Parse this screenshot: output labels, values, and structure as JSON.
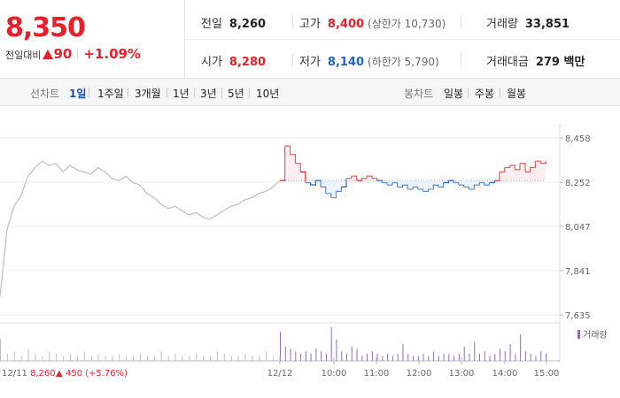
{
  "header": {
    "price": "8,350",
    "change_label": "전일대비",
    "change_amount": "90",
    "change_pct": "+1.09%",
    "fields": {
      "prev_close": {
        "label": "전일",
        "value": "8,260"
      },
      "high": {
        "label": "고가",
        "value": "8,400",
        "sub": "(상한가 10,730)"
      },
      "volume": {
        "label": "거래량",
        "value": "33,851"
      },
      "open": {
        "label": "시가",
        "value": "8,280"
      },
      "low": {
        "label": "저가",
        "value": "8,140",
        "sub": "(하한가 5,790)"
      },
      "turnover": {
        "label": "거래대금",
        "value": "279 백만"
      }
    }
  },
  "tabs": {
    "line_label": "선차트",
    "line_periods": [
      "1일",
      "1주일",
      "3개월",
      "1년",
      "3년",
      "5년",
      "10년"
    ],
    "active_period": "1일",
    "candle_label": "봉차트",
    "candle_periods": [
      "일봉",
      "주봉",
      "월봉"
    ]
  },
  "colors": {
    "up": "#e8202a",
    "down": "#1d63c9",
    "prev_day": "#bdbdbd",
    "volume": "#8c6fb8"
  },
  "chart_data": {
    "type": "line",
    "ylim": [
      7635,
      8458
    ],
    "y_ticks": [
      "8,458",
      "8,252",
      "8,047",
      "7,841",
      "7,635"
    ],
    "y_tick_values": [
      8458,
      8252,
      8047,
      7841,
      7635
    ],
    "baseline": 8260,
    "x_tick_labels": [
      "12/12",
      "10:00",
      "11:00",
      "12:00",
      "13:00",
      "14:00",
      "15:00"
    ],
    "prev_day": {
      "date_label": "12/11",
      "close": "8,260",
      "change": "450",
      "change_pct": "(+5.76%)",
      "values": [
        7720,
        8030,
        8140,
        8190,
        8280,
        8320,
        8350,
        8330,
        8340,
        8300,
        8330,
        8310,
        8300,
        8290,
        8320,
        8300,
        8270,
        8260,
        8280,
        8250,
        8240,
        8200,
        8180,
        8150,
        8130,
        8140,
        8120,
        8100,
        8110,
        8090,
        8080,
        8100,
        8120,
        8140,
        8150,
        8170,
        8180,
        8200,
        8210,
        8230,
        8260
      ]
    },
    "today": {
      "values": [
        8260,
        8420,
        8380,
        8340,
        8300,
        8250,
        8240,
        8260,
        8230,
        8200,
        8180,
        8210,
        8230,
        8270,
        8280,
        8260,
        8270,
        8280,
        8270,
        8260,
        8250,
        8240,
        8250,
        8230,
        8240,
        8220,
        8230,
        8220,
        8210,
        8220,
        8240,
        8230,
        8250,
        8260,
        8250,
        8240,
        8230,
        8220,
        8240,
        8250,
        8240,
        8250,
        8260,
        8300,
        8320,
        8330,
        8310,
        8340,
        8300,
        8320,
        8350,
        8340,
        8350
      ]
    },
    "volume_label": "거래량",
    "volume": {
      "prev_day": [
        9,
        3,
        4,
        2,
        5,
        3,
        2,
        4,
        3,
        2,
        3,
        2,
        4,
        2,
        3,
        2,
        2,
        3,
        2,
        2,
        3,
        2,
        2,
        4,
        2,
        3,
        2,
        2,
        3,
        2,
        2,
        4,
        3,
        2,
        2,
        3,
        2,
        2,
        4,
        2,
        3
      ],
      "today": [
        12,
        6,
        5,
        4,
        3,
        4,
        3,
        5,
        4,
        3,
        14,
        9,
        4,
        3,
        6,
        5,
        2,
        3,
        4,
        3,
        2,
        3,
        2,
        3,
        7,
        3,
        2,
        2,
        3,
        2,
        4,
        2,
        3,
        3,
        2,
        3,
        6,
        3,
        8,
        3,
        4,
        2,
        3,
        5,
        4,
        7,
        3,
        11,
        4,
        3,
        2,
        4,
        3
      ]
    }
  }
}
